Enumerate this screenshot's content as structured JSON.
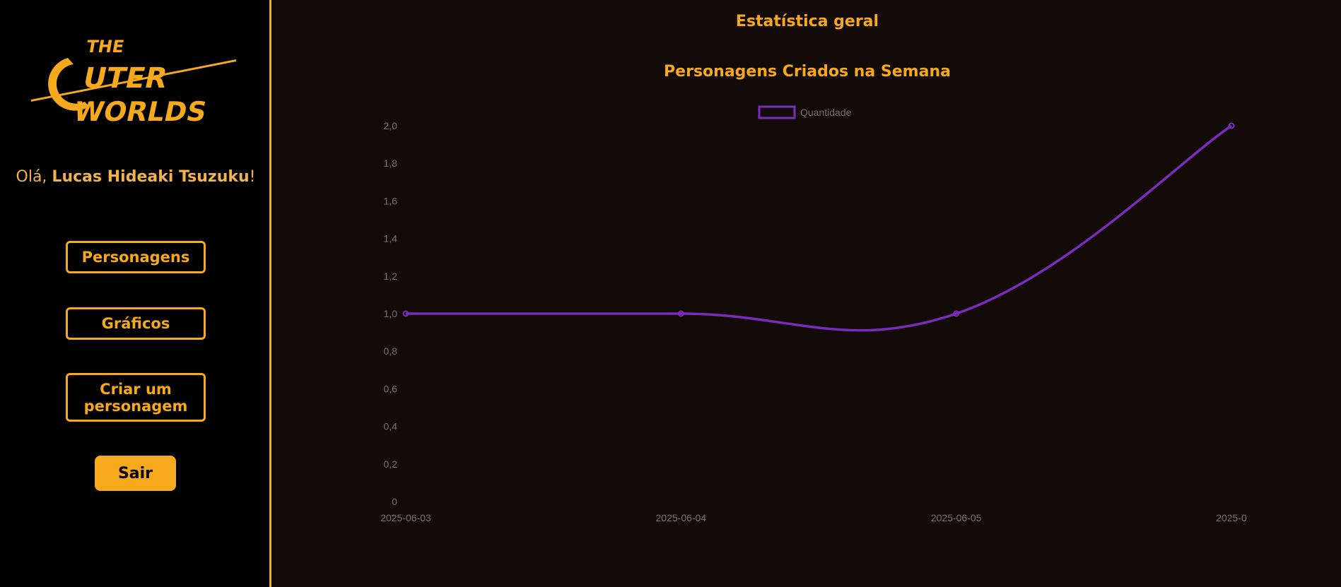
{
  "sidebar": {
    "greeting_prefix": "Olá, ",
    "user_name": "Lucas Hideaki Tsuzuku",
    "greeting_suffix": "!",
    "nav": {
      "personagens": "Personagens",
      "graficos": "Gráficos",
      "criar": "Criar um personagem"
    },
    "logout": "Sair"
  },
  "logo": {
    "line1": "THE",
    "line2": "OUTER",
    "line3": "WORLDS"
  },
  "main": {
    "title": "Estatística geral"
  },
  "colors": {
    "accent": "#f6a91c",
    "series": "#7b2cbf",
    "background": "#120b07"
  },
  "chart_data": {
    "type": "line",
    "title": "Personagens Criados na Semana",
    "legend_position": "top-center",
    "x": [
      "2025-06-03",
      "2025-06-04",
      "2025-06-05",
      "2025-0"
    ],
    "series": [
      {
        "name": "Quantidade",
        "values": [
          1,
          1,
          1,
          2
        ]
      }
    ],
    "ylim": [
      0,
      2
    ],
    "yticks": [
      "0",
      "0,2",
      "0,4",
      "0,6",
      "0,8",
      "1,0",
      "1,2",
      "1,4",
      "1,6",
      "1,8",
      "2,0"
    ],
    "grid": false
  }
}
